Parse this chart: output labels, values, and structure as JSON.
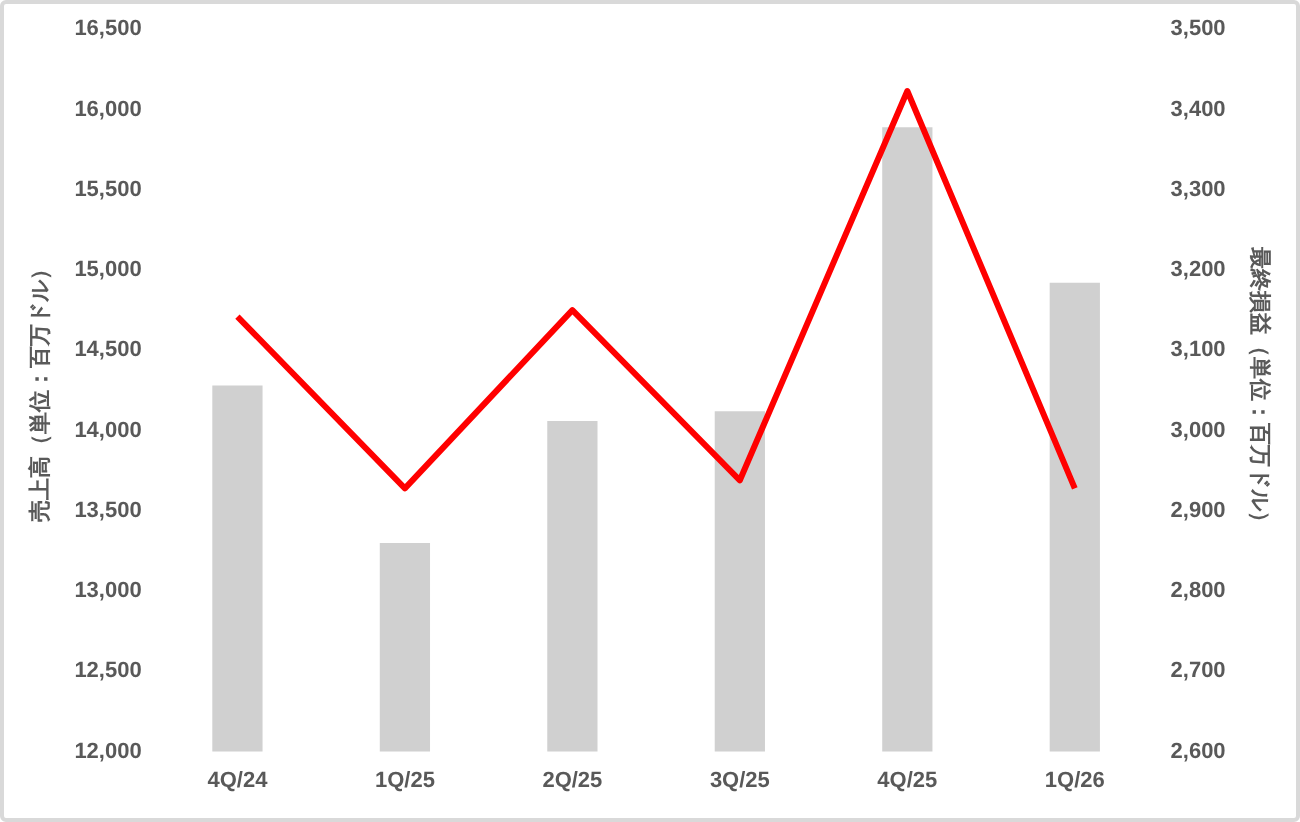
{
  "chart_data": {
    "type": "bar",
    "categories": [
      "4Q/24",
      "1Q/25",
      "2Q/25",
      "3Q/25",
      "4Q/25",
      "1Q/26"
    ],
    "ylabel": "売上高（単位：百万ドル）",
    "y2label": "最終損益（単位：百万ドル）",
    "series": [
      {
        "color": "#d0d0d0",
        "values": [
          14280,
          13300,
          14060,
          14120,
          15890,
          14920
        ]
      },
      {
        "type": "line",
        "axis": "y2",
        "color": "#ff0000",
        "values": [
          3142,
          2928,
          3150,
          2938,
          3423,
          2928
        ]
      }
    ],
    "ylim": [
      12000,
      16500
    ],
    "yticks": [
      {
        "value": 12000,
        "label": "12,000"
      },
      {
        "value": 12500,
        "label": "12,500"
      },
      {
        "value": 13000,
        "label": "13,000"
      },
      {
        "value": 13500,
        "label": "13,500"
      },
      {
        "value": 14000,
        "label": "14,000"
      },
      {
        "value": 14500,
        "label": "14,500"
      },
      {
        "value": 15000,
        "label": "15,000"
      },
      {
        "value": 15500,
        "label": "15,500"
      },
      {
        "value": 16000,
        "label": "16,000"
      },
      {
        "value": 16500,
        "label": "16,500"
      }
    ],
    "y2lim": [
      2600,
      3500
    ],
    "y2ticks": [
      {
        "value": 2600,
        "label": "2,600"
      },
      {
        "value": 2700,
        "label": "2,700"
      },
      {
        "value": 2800,
        "label": "2,800"
      },
      {
        "value": 2900,
        "label": "2,900"
      },
      {
        "value": 3000,
        "label": "3,000"
      },
      {
        "value": 3100,
        "label": "3,100"
      },
      {
        "value": 3200,
        "label": "3,200"
      },
      {
        "value": 3300,
        "label": "3,300"
      },
      {
        "value": 3400,
        "label": "3,400"
      },
      {
        "value": 3500,
        "label": "3,500"
      }
    ],
    "grid": false,
    "legend": false,
    "marker": "none",
    "line_style": "solid"
  }
}
